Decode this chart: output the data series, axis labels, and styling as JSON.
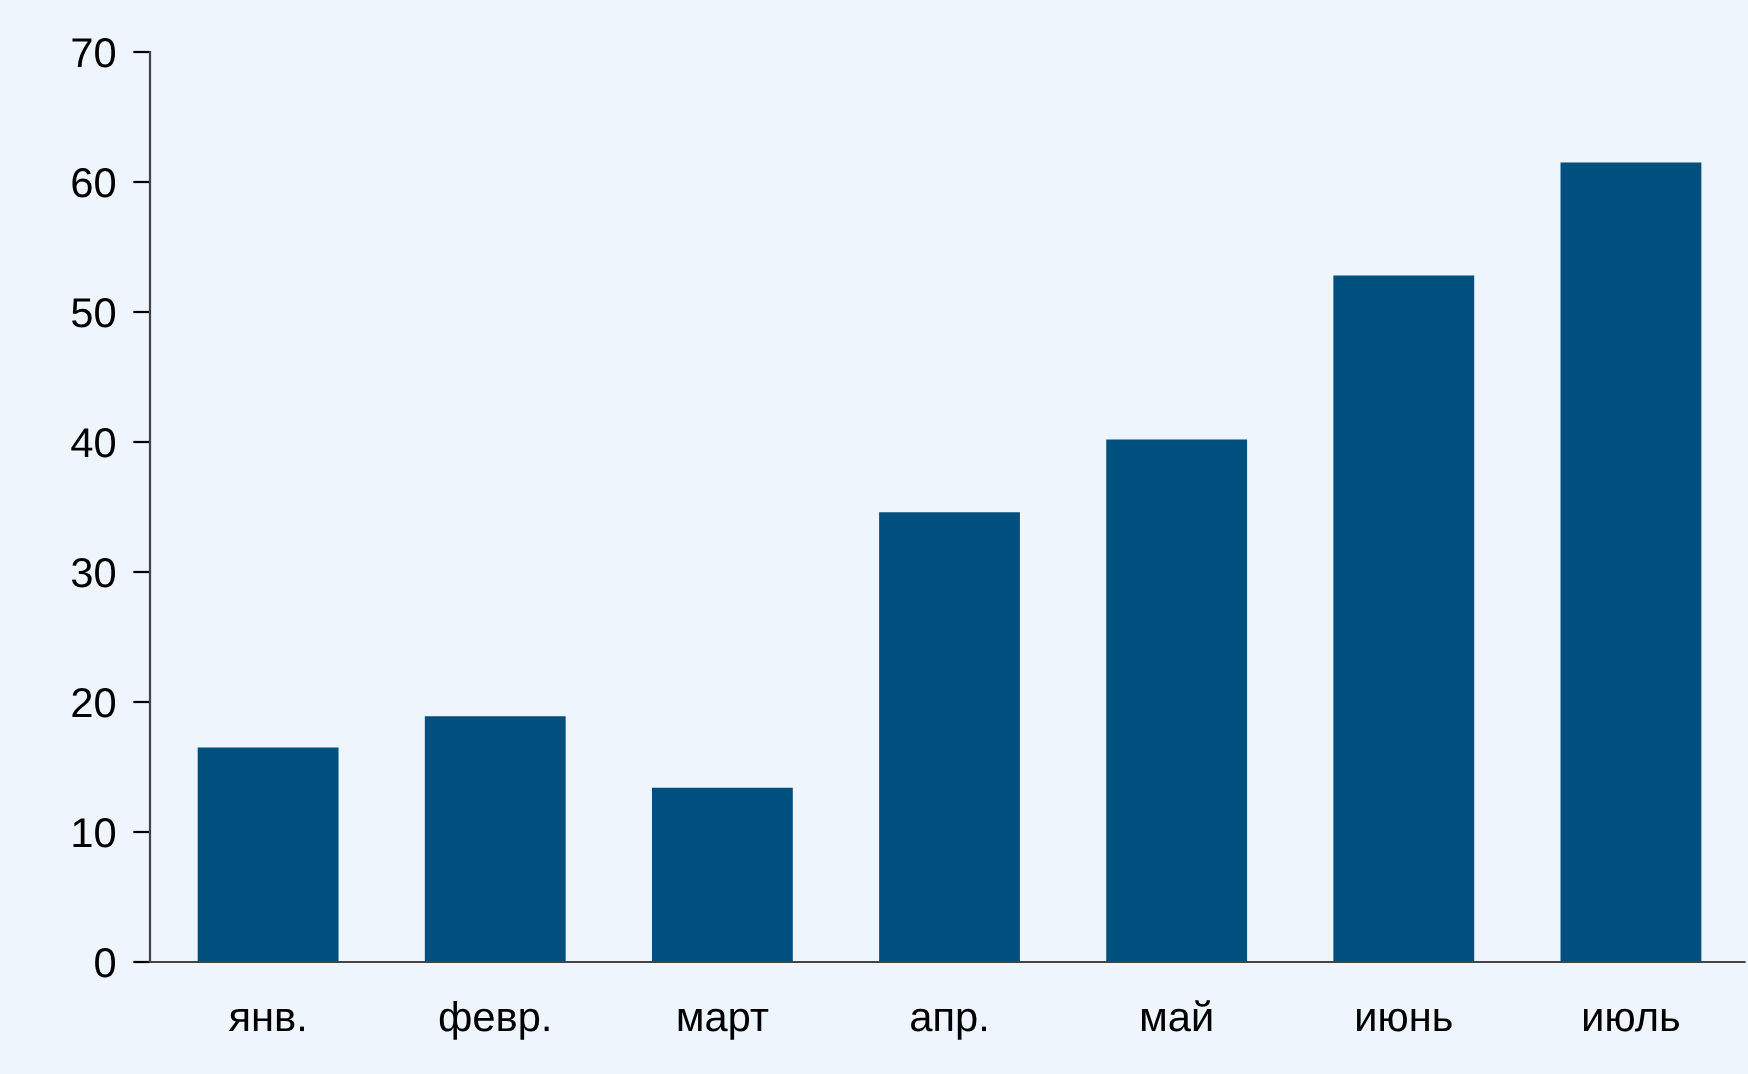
{
  "chart_data": {
    "type": "bar",
    "categories": [
      "янв.",
      "февр.",
      "март",
      "апр.",
      "май",
      "июнь",
      "июль"
    ],
    "values": [
      16.5,
      18.9,
      13.4,
      34.6,
      40.2,
      52.8,
      61.5
    ],
    "color": "#00507f",
    "ylim": [
      0,
      70
    ],
    "yticks": [
      0,
      10,
      20,
      30,
      40,
      50,
      60,
      70
    ],
    "grid": false,
    "legend": false
  }
}
